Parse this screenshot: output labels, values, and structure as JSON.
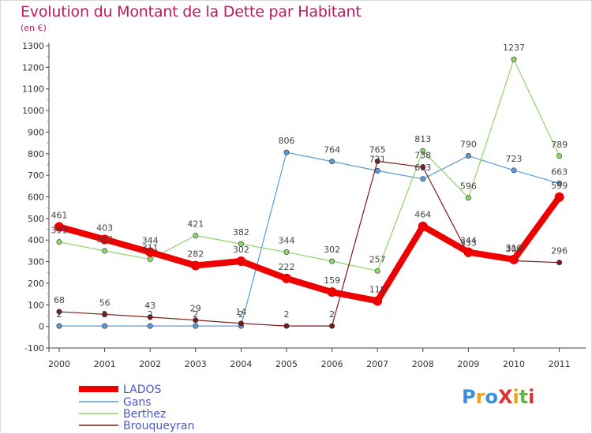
{
  "title": "Evolution du Montant de la Dette par Habitant",
  "subtitle": "(en €)",
  "logo": {
    "text": "ProXiti",
    "letters": [
      "P",
      "r",
      "o",
      "X",
      "i",
      "t",
      "i"
    ],
    "colors": [
      "#3a8fd8",
      "#f0a020",
      "#3a8fd8",
      "#e03030",
      "#f0a020",
      "#6ab04c",
      "#e03030"
    ]
  },
  "chart_data": {
    "type": "line",
    "x": [
      "2000",
      "2001",
      "2002",
      "2003",
      "2004",
      "2005",
      "2006",
      "2007",
      "2008",
      "2009",
      "2010",
      "2011"
    ],
    "ylim": [
      -100,
      1300
    ],
    "yticks": [
      -100,
      0,
      100,
      200,
      300,
      400,
      500,
      600,
      700,
      800,
      900,
      1000,
      1100,
      1200,
      1300
    ],
    "grid": false,
    "legend": "bottom-left",
    "series": [
      {
        "name": "LADOS",
        "color": "#ee0000",
        "values": [
          461,
          403,
          344,
          282,
          302,
          222,
          159,
          118,
          464,
          344,
          310,
          599
        ],
        "labels": [
          "461",
          "403",
          "344",
          "282",
          "302",
          "222",
          "159",
          "118",
          "464",
          "344",
          "310",
          "599"
        ]
      },
      {
        "name": "Gans",
        "color": "#5b9bd5",
        "values": [
          2,
          2,
          2,
          2,
          2,
          806,
          764,
          721,
          683,
          790,
          723,
          663
        ],
        "labels": [
          "2",
          "2",
          "2",
          "2",
          "2",
          "806",
          "764",
          "721",
          "683",
          "790",
          "723",
          "663"
        ]
      },
      {
        "name": "Berthez",
        "color": "#8fd46a",
        "values": [
          391,
          350,
          311,
          421,
          382,
          344,
          302,
          257,
          813,
          596,
          1237,
          789
        ],
        "labels": [
          "391",
          "350",
          "311",
          "421",
          "382",
          "344",
          "302",
          "257",
          "813",
          "596",
          "1237",
          "789"
        ]
      },
      {
        "name": "Brouqueyran",
        "color": "#7a1a1a",
        "values": [
          68,
          56,
          43,
          29,
          14,
          2,
          2,
          765,
          738,
          333,
          304,
          296
        ],
        "labels": [
          "68",
          "56",
          "43",
          "29",
          "14",
          "2",
          "2",
          "765",
          "738",
          "333",
          "304",
          "296"
        ]
      }
    ]
  }
}
